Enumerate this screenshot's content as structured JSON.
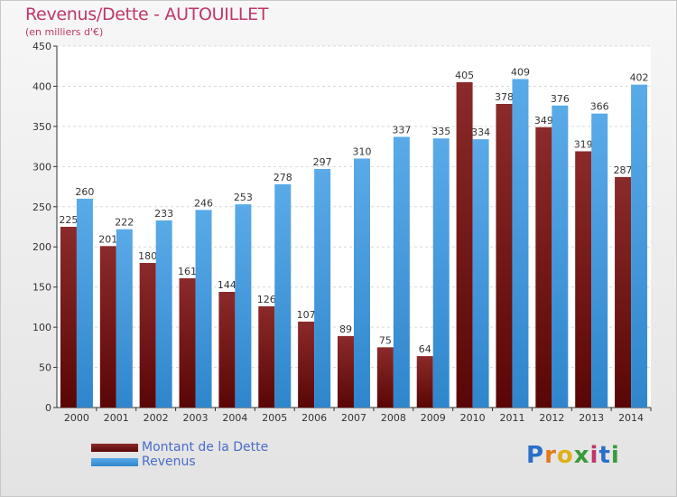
{
  "header": {
    "title": "Revenus/Dette - AUTOUILLET",
    "subtitle": "(en milliers d'€)"
  },
  "colors": {
    "dette_top": "#8b2a2a",
    "dette_bottom": "#5a0606",
    "revenus_top": "#5aaae8",
    "revenus_bottom": "#2f86cc",
    "title": "#c0366a"
  },
  "logo": {
    "text": "Proxiti"
  },
  "chart_data": {
    "type": "bar",
    "title": "Revenus/Dette - AUTOUILLET",
    "subtitle": "(en milliers d'€)",
    "categories": [
      "2000",
      "2001",
      "2002",
      "2003",
      "2004",
      "2005",
      "2006",
      "2007",
      "2008",
      "2009",
      "2010",
      "2011",
      "2012",
      "2013",
      "2014"
    ],
    "series": [
      {
        "name": "Montant de la Dette",
        "values": [
          225,
          201,
          180,
          161,
          144,
          126,
          107,
          89,
          75,
          64,
          405,
          378,
          349,
          319,
          287
        ]
      },
      {
        "name": "Revenus",
        "values": [
          260,
          222,
          233,
          246,
          253,
          278,
          297,
          310,
          337,
          335,
          334,
          409,
          376,
          366,
          402
        ]
      }
    ],
    "ylim": [
      0,
      450
    ],
    "yticks": [
      0,
      50,
      100,
      150,
      200,
      250,
      300,
      350,
      400,
      450
    ],
    "grid": true,
    "legend": "bottom-left"
  }
}
